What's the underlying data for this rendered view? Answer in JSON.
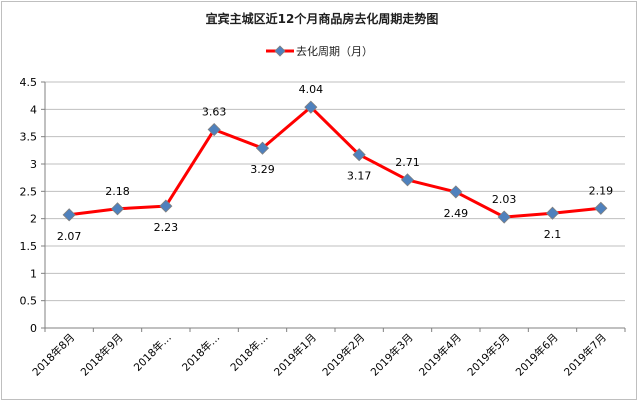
{
  "chart_data": {
    "type": "line",
    "title": "宜宾主城区近12个月商品房去化周期走势图",
    "categories": [
      "2018年8月",
      "2018年9月",
      "2018年…",
      "2018年…",
      "2018年…",
      "2019年1月",
      "2019年2月",
      "2019年3月",
      "2019年4月",
      "2019年5月",
      "2019年6月",
      "2019年7月"
    ],
    "series": [
      {
        "name": "去化周期（月）",
        "values": [
          2.07,
          2.18,
          2.23,
          3.63,
          3.29,
          4.04,
          3.17,
          2.71,
          2.49,
          2.03,
          2.1,
          2.19
        ],
        "labels": [
          "2.07",
          "2.18",
          "2.23",
          "3.63",
          "3.29",
          "4.04",
          "3.17",
          "2.71",
          "2.49",
          "2.03",
          "2.1",
          "2.19"
        ],
        "line_color": "#ff0000",
        "marker_color": "#4f81bd"
      }
    ],
    "ylim": [
      0,
      4.5
    ],
    "yticks": [
      "0",
      "0.5",
      "1",
      "1.5",
      "2",
      "2.5",
      "3",
      "3.5",
      "4",
      "4.5"
    ],
    "grid": true,
    "legend_position": "top-center",
    "grid_color": "#bfbfbf",
    "axis_color": "#808080"
  }
}
